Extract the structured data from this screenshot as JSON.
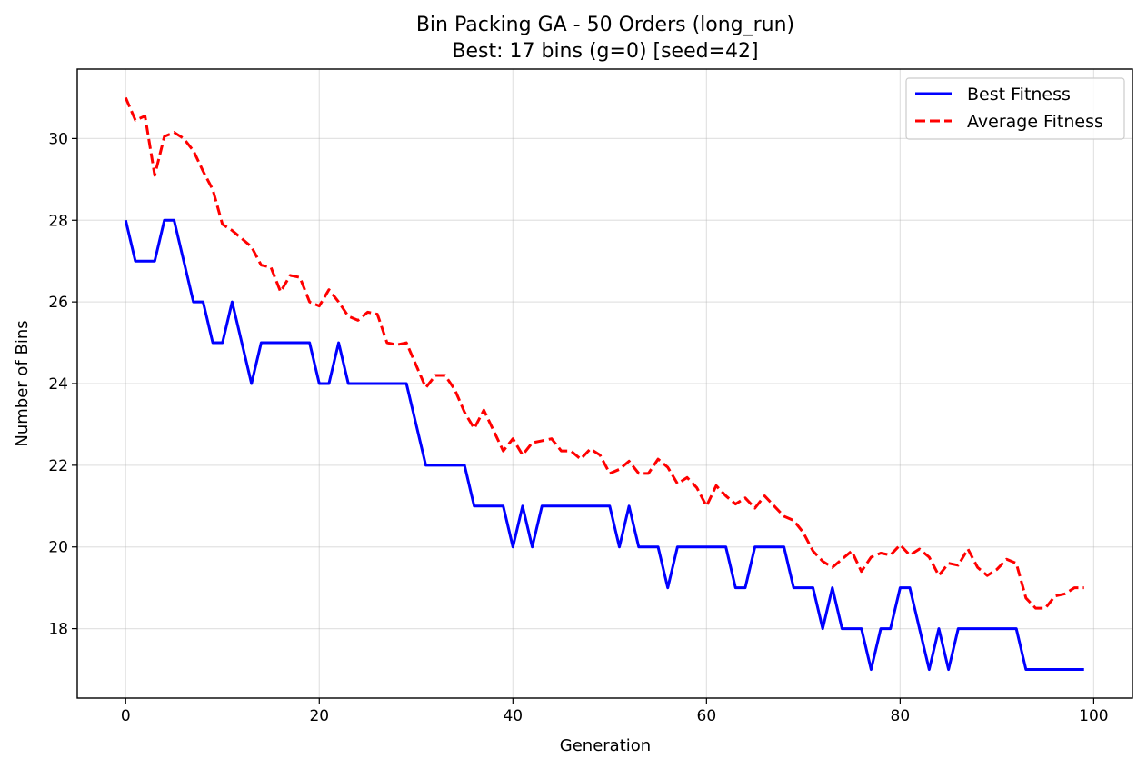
{
  "chart_data": {
    "type": "line",
    "title": "Bin Packing GA - 50 Orders (long_run)",
    "subtitle": "Best: 17 bins (g=0) [seed=42]",
    "xlabel": "Generation",
    "ylabel": "Number of Bins",
    "xlim": [
      -5,
      104
    ],
    "ylim": [
      16.3,
      31.7
    ],
    "xticks": [
      0,
      20,
      40,
      60,
      80,
      100
    ],
    "yticks": [
      18,
      20,
      22,
      24,
      26,
      28,
      30
    ],
    "grid": true,
    "legend_position": "top-right",
    "series": [
      {
        "name": "Best Fitness",
        "color": "#0000ff",
        "style": "solid",
        "values": [
          28,
          27,
          27,
          27,
          28,
          28,
          27,
          26,
          26,
          25,
          25,
          26,
          25,
          24,
          25,
          25,
          25,
          25,
          25,
          25,
          24,
          24,
          25,
          24,
          24,
          24,
          24,
          24,
          24,
          24,
          23,
          22,
          22,
          22,
          22,
          22,
          21,
          21,
          21,
          21,
          20,
          21,
          20,
          21,
          21,
          21,
          21,
          21,
          21,
          21,
          21,
          20,
          21,
          20,
          20,
          20,
          19,
          20,
          20,
          20,
          20,
          20,
          20,
          19,
          19,
          20,
          20,
          20,
          20,
          19,
          19,
          19,
          18,
          19,
          18,
          18,
          18,
          17,
          18,
          18,
          19,
          19,
          18,
          17,
          18,
          17,
          18,
          18,
          18,
          18,
          18,
          18,
          18,
          17,
          17,
          17,
          17,
          17,
          17,
          17
        ]
      },
      {
        "name": "Average Fitness",
        "color": "#ff0000",
        "style": "dashed",
        "values": [
          31.0,
          30.45,
          30.55,
          29.1,
          30.05,
          30.15,
          30.0,
          29.7,
          29.2,
          28.75,
          27.9,
          27.75,
          27.55,
          27.35,
          26.9,
          26.85,
          26.25,
          26.65,
          26.6,
          26.0,
          25.9,
          26.3,
          26.0,
          25.65,
          25.55,
          25.75,
          25.7,
          25.0,
          24.95,
          25.0,
          24.45,
          23.9,
          24.2,
          24.2,
          23.85,
          23.3,
          22.9,
          23.35,
          22.85,
          22.35,
          22.65,
          22.25,
          22.55,
          22.6,
          22.65,
          22.35,
          22.35,
          22.15,
          22.4,
          22.25,
          21.8,
          21.9,
          22.1,
          21.8,
          21.8,
          22.15,
          21.95,
          21.55,
          21.7,
          21.45,
          21.0,
          21.5,
          21.25,
          21.05,
          21.2,
          20.95,
          21.25,
          21.0,
          20.75,
          20.65,
          20.35,
          19.9,
          19.65,
          19.5,
          19.7,
          19.9,
          19.4,
          19.75,
          19.85,
          19.8,
          20.05,
          19.8,
          19.95,
          19.75,
          19.3,
          19.6,
          19.55,
          19.95,
          19.5,
          19.3,
          19.45,
          19.7,
          19.6,
          18.75,
          18.5,
          18.5,
          18.8,
          18.85,
          19.0,
          19.0
        ]
      }
    ]
  }
}
